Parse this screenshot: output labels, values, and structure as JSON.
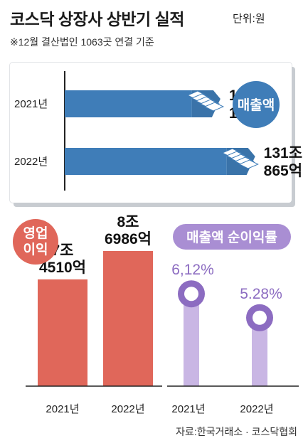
{
  "title": "코스닥 상장사 상반기 실적",
  "unit": "단위:원",
  "note": "※12월 결산법인 1063곳 연결 기준",
  "source": "자료:한국거래소 · 코스닥협회",
  "colors": {
    "sales_bar": "#3f7db8",
    "sales_badge": "#3f7db8",
    "op_bar": "#e0675a",
    "op_badge": "#e0675a",
    "margin_bar": "#c9b6e4",
    "margin_badge": "#a98ed3",
    "margin_marker": "#8c6cc1"
  },
  "chart_data": [
    {
      "type": "bar",
      "orientation": "horizontal",
      "label": "매출액",
      "categories": [
        "2021년",
        "2022년"
      ],
      "values": [
        1071804,
        1310865
      ],
      "value_unit": "억원",
      "data_labels": [
        [
          "107조",
          "1804억"
        ],
        [
          "131조",
          "865억"
        ]
      ]
    },
    {
      "type": "bar",
      "label": "영업 이익",
      "label_lines": [
        "영업",
        "이익"
      ],
      "categories": [
        "2021년",
        "2022년"
      ],
      "values": [
        74510,
        86986
      ],
      "value_unit": "억원",
      "data_labels": [
        [
          "7조",
          "4510억"
        ],
        [
          "8조",
          "6986억"
        ]
      ]
    },
    {
      "type": "bar",
      "label": "매출액 순이익률",
      "categories": [
        "2021년",
        "2022년"
      ],
      "values": [
        6.12,
        5.28
      ],
      "value_unit": "%",
      "data_labels": [
        "6,12%",
        "5.28%"
      ]
    }
  ]
}
